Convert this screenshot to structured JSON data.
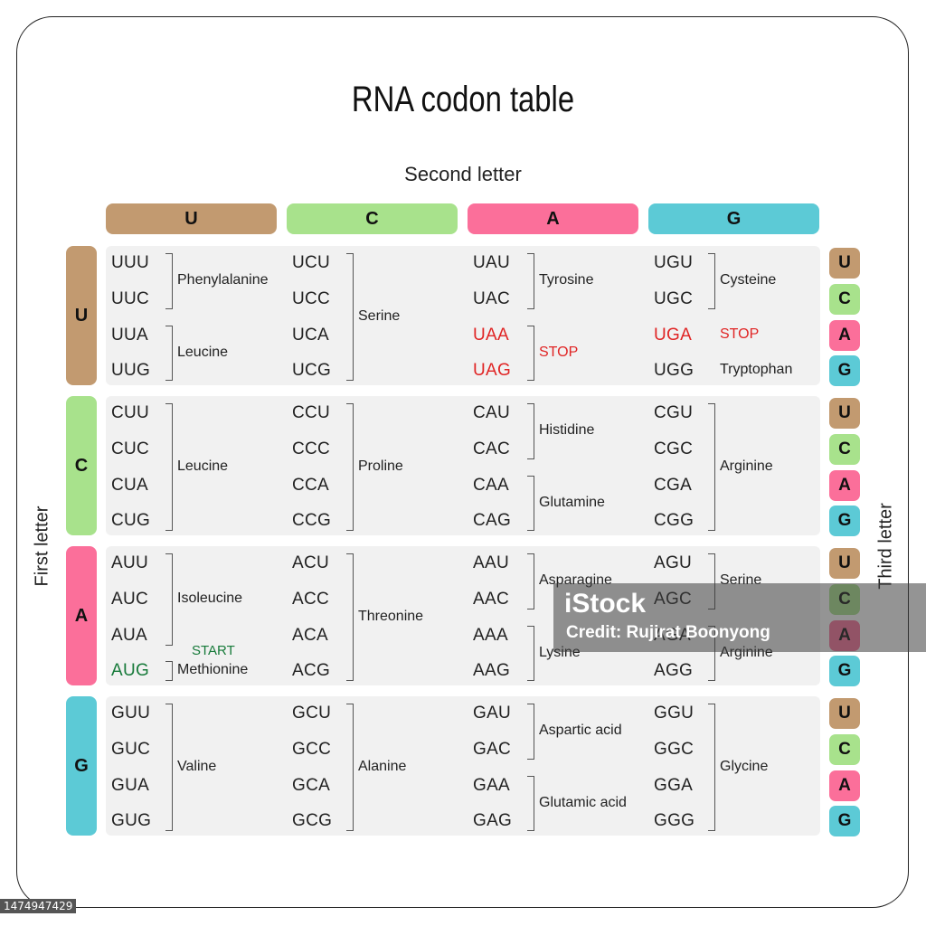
{
  "title": "RNA codon table",
  "second_letter_label": "Second letter",
  "first_letter_label": "First letter",
  "third_letter_label": "Third letter",
  "bases": [
    "U",
    "C",
    "A",
    "G"
  ],
  "base_colors": {
    "U": "#c29a70",
    "C": "#a8e28c",
    "A": "#fb6f9a",
    "G": "#5ccad6"
  },
  "start_label": "START",
  "rows": [
    {
      "first": "U",
      "cols": [
        {
          "codons": [
            "UUU",
            "UUC",
            "UUA",
            "UUG"
          ],
          "groups": [
            {
              "label": "Phenylalanine",
              "from": 0,
              "to": 1
            },
            {
              "label": "Leucine",
              "from": 2,
              "to": 3
            }
          ]
        },
        {
          "codons": [
            "UCU",
            "UCC",
            "UCA",
            "UCG"
          ],
          "groups": [
            {
              "label": "Serine",
              "from": 0,
              "to": 3
            }
          ]
        },
        {
          "codons": [
            "UAU",
            "UAC",
            "UAA",
            "UAG"
          ],
          "stop_codons": [
            2,
            3
          ],
          "groups": [
            {
              "label": "Tyrosine",
              "from": 0,
              "to": 1
            },
            {
              "label": "STOP",
              "from": 2,
              "to": 3,
              "stop": true
            }
          ]
        },
        {
          "codons": [
            "UGU",
            "UGC",
            "UGA",
            "UGG"
          ],
          "stop_codons": [
            2
          ],
          "groups": [
            {
              "label": "Cysteine",
              "from": 0,
              "to": 1
            },
            {
              "label": "STOP",
              "from": 2,
              "to": 2,
              "stop": true,
              "nobracket": true
            },
            {
              "label": "Tryptophan",
              "from": 3,
              "to": 3,
              "nobracket": true
            }
          ]
        }
      ]
    },
    {
      "first": "C",
      "cols": [
        {
          "codons": [
            "CUU",
            "CUC",
            "CUA",
            "CUG"
          ],
          "groups": [
            {
              "label": "Leucine",
              "from": 0,
              "to": 3
            }
          ]
        },
        {
          "codons": [
            "CCU",
            "CCC",
            "CCA",
            "CCG"
          ],
          "groups": [
            {
              "label": "Proline",
              "from": 0,
              "to": 3
            }
          ]
        },
        {
          "codons": [
            "CAU",
            "CAC",
            "CAA",
            "CAG"
          ],
          "groups": [
            {
              "label": "Histidine",
              "from": 0,
              "to": 1
            },
            {
              "label": "Glutamine",
              "from": 2,
              "to": 3
            }
          ]
        },
        {
          "codons": [
            "CGU",
            "CGC",
            "CGA",
            "CGG"
          ],
          "groups": [
            {
              "label": "Arginine",
              "from": 0,
              "to": 3
            }
          ]
        }
      ]
    },
    {
      "first": "A",
      "cols": [
        {
          "codons": [
            "AUU",
            "AUC",
            "AUA",
            "AUG"
          ],
          "start_codons": [
            3
          ],
          "groups": [
            {
              "label": "Isoleucine",
              "from": 0,
              "to": 2
            },
            {
              "label": "Methionine",
              "from": 3,
              "to": 3,
              "start": true
            }
          ]
        },
        {
          "codons": [
            "ACU",
            "ACC",
            "ACA",
            "ACG"
          ],
          "groups": [
            {
              "label": "Threonine",
              "from": 0,
              "to": 3
            }
          ]
        },
        {
          "codons": [
            "AAU",
            "AAC",
            "AAA",
            "AAG"
          ],
          "groups": [
            {
              "label": "Asparagine",
              "from": 0,
              "to": 1
            },
            {
              "label": "Lysine",
              "from": 2,
              "to": 3
            }
          ]
        },
        {
          "codons": [
            "AGU",
            "AGC",
            "AGA",
            "AGG"
          ],
          "groups": [
            {
              "label": "Serine",
              "from": 0,
              "to": 1
            },
            {
              "label": "Arginine",
              "from": 2,
              "to": 3
            }
          ]
        }
      ]
    },
    {
      "first": "G",
      "cols": [
        {
          "codons": [
            "GUU",
            "GUC",
            "GUA",
            "GUG"
          ],
          "groups": [
            {
              "label": "Valine",
              "from": 0,
              "to": 3
            }
          ]
        },
        {
          "codons": [
            "GCU",
            "GCC",
            "GCA",
            "GCG"
          ],
          "groups": [
            {
              "label": "Alanine",
              "from": 0,
              "to": 3
            }
          ]
        },
        {
          "codons": [
            "GAU",
            "GAC",
            "GAA",
            "GAG"
          ],
          "groups": [
            {
              "label": "Aspartic acid",
              "from": 0,
              "to": 1
            },
            {
              "label": "Glutamic acid",
              "from": 2,
              "to": 3
            }
          ]
        },
        {
          "codons": [
            "GGU",
            "GGC",
            "GGA",
            "GGG"
          ],
          "groups": [
            {
              "label": "Glycine",
              "from": 0,
              "to": 3
            }
          ]
        }
      ]
    }
  ],
  "watermark": {
    "logo": "iStock",
    "credit": "Credit: Rujirat Boonyong"
  },
  "stock_id": "1474947429"
}
